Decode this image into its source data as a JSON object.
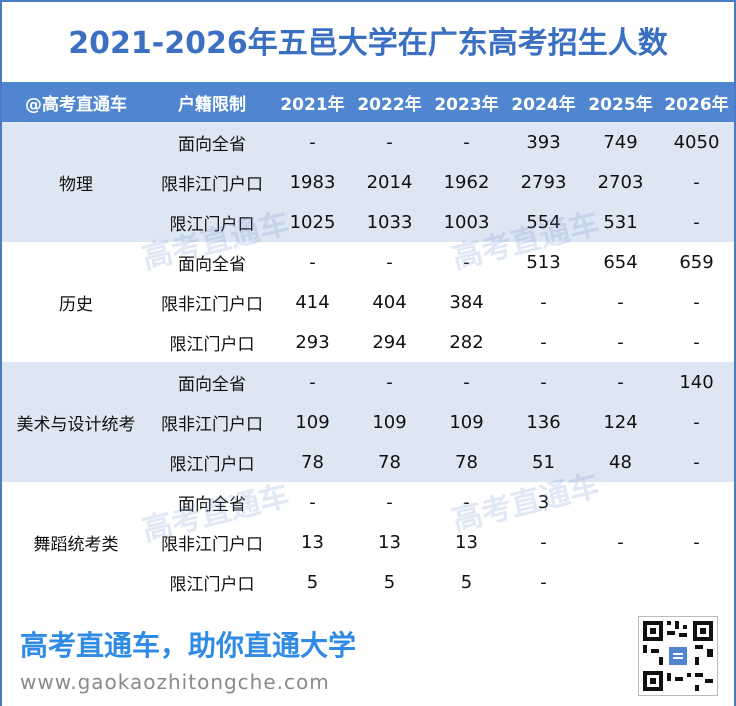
{
  "title": "2021-2026年五邑大学在广东高考招生人数",
  "table": {
    "headers": [
      "@高考直通车",
      "户籍限制",
      "2021年",
      "2022年",
      "2023年",
      "2024年",
      "2025年",
      "2026年"
    ],
    "groups": [
      {
        "name": "物理",
        "rows": [
          {
            "label": "面向全省",
            "values": [
              "-",
              "-",
              "-",
              "393",
              "749",
              "4050"
            ]
          },
          {
            "label": "限非江门户口",
            "values": [
              "1983",
              "2014",
              "1962",
              "2793",
              "2703",
              "-"
            ]
          },
          {
            "label": "限江门户口",
            "values": [
              "1025",
              "1033",
              "1003",
              "554",
              "531",
              "-"
            ]
          }
        ]
      },
      {
        "name": "历史",
        "rows": [
          {
            "label": "面向全省",
            "values": [
              "-",
              "-",
              "-",
              "513",
              "654",
              "659"
            ]
          },
          {
            "label": "限非江门户口",
            "values": [
              "414",
              "404",
              "384",
              "-",
              "-",
              "-"
            ]
          },
          {
            "label": "限江门户口",
            "values": [
              "293",
              "294",
              "282",
              "-",
              "-",
              "-"
            ]
          }
        ]
      },
      {
        "name": "美术与设计统考",
        "rows": [
          {
            "label": "面向全省",
            "values": [
              "-",
              "-",
              "-",
              "-",
              "-",
              "140"
            ]
          },
          {
            "label": "限非江门户口",
            "values": [
              "109",
              "109",
              "109",
              "136",
              "124",
              "-"
            ]
          },
          {
            "label": "限江门户口",
            "values": [
              "78",
              "78",
              "78",
              "51",
              "48",
              "-"
            ]
          }
        ]
      },
      {
        "name": "舞蹈统考类",
        "rows": [
          {
            "label": "面向全省",
            "values": [
              "-",
              "-",
              "-",
              "3",
              "",
              ""
            ]
          },
          {
            "label": "限非江门户口",
            "values": [
              "13",
              "13",
              "13",
              "-",
              "-",
              "-"
            ]
          },
          {
            "label": "限江门户口",
            "values": [
              "5",
              "5",
              "5",
              "-",
              "",
              ""
            ]
          }
        ]
      }
    ]
  },
  "watermark": "高考直通车",
  "footer": {
    "slogan": "高考直通车，助你直通大学",
    "url": "www.gaokaozhitongche.com",
    "qr_icon": "qr-code-icon"
  },
  "colors": {
    "accent": "#3b6fc2",
    "header_bg": "#4f86cf",
    "row_shade": "#dde6f3",
    "slogan": "#2f8be6"
  }
}
